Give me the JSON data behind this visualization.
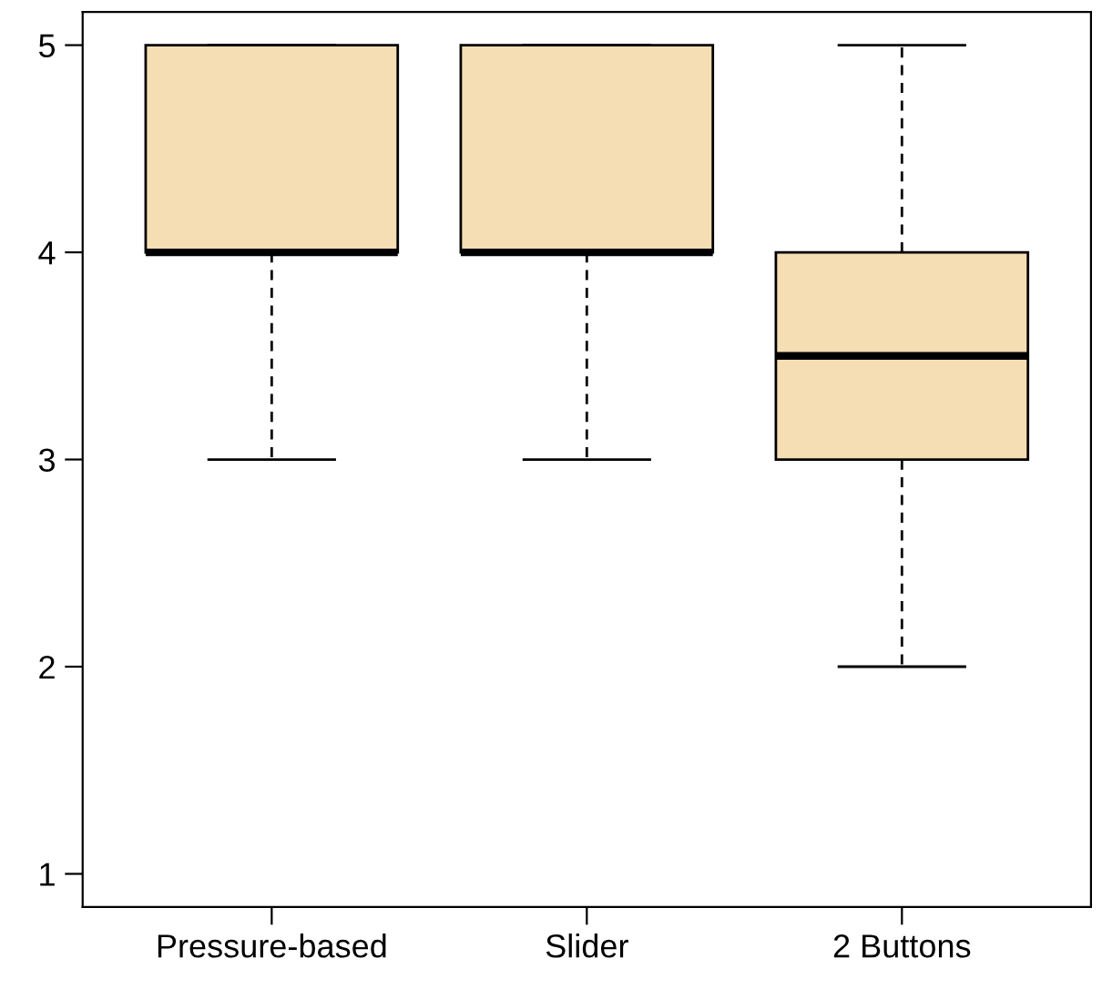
{
  "chart_data": {
    "type": "box",
    "categories": [
      "Pressure-based",
      "Slider",
      "2 Buttons"
    ],
    "boxes": [
      {
        "low": 3,
        "q1": 4,
        "median": 4,
        "q3": 5,
        "high": 5
      },
      {
        "low": 3,
        "q1": 4,
        "median": 4,
        "q3": 5,
        "high": 5
      },
      {
        "low": 2,
        "q1": 3,
        "median": 3.5,
        "q3": 4,
        "high": 5
      }
    ],
    "color": "#f5deb3",
    "ylim": [
      0.84,
      5.16
    ],
    "yticks": [
      1,
      2,
      3,
      4,
      5
    ],
    "grid": false,
    "legend": false
  }
}
